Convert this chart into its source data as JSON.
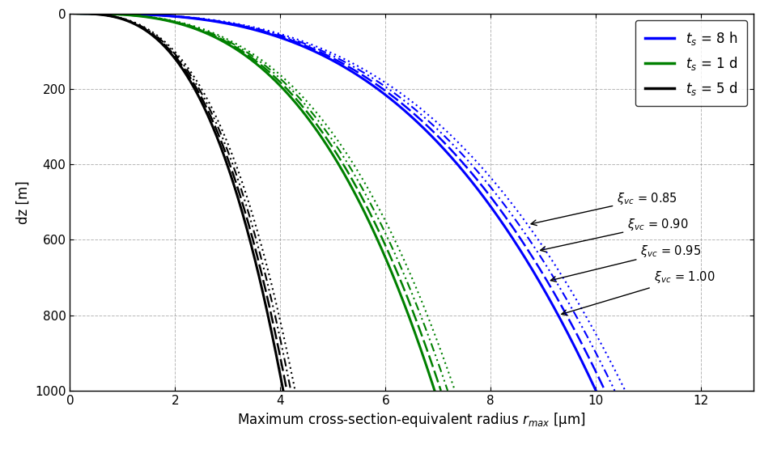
{
  "xlabel": "Maximum cross-section-equivalent radius $r_{max}$ [μm]",
  "ylabel": "dz [m]",
  "xlim": [
    0,
    13
  ],
  "ylim": [
    1000,
    0
  ],
  "xticks": [
    0,
    2,
    4,
    6,
    8,
    10,
    12
  ],
  "yticks": [
    0,
    200,
    400,
    600,
    800,
    1000
  ],
  "colors": {
    "blue": "#0000ff",
    "green": "#008000",
    "black": "#000000"
  },
  "xi_values": [
    0.85,
    0.9,
    0.95,
    1.0
  ],
  "t_s_hours": [
    8,
    24,
    120
  ],
  "t_s_labels": [
    "$t_s$ = 8 h",
    "$t_s$ = 1 d",
    "$t_s$ = 5 d"
  ],
  "legend_colors": [
    "#0000ff",
    "#008000",
    "#000000"
  ],
  "background_color": "#ffffff",
  "grid_color": "#888888"
}
